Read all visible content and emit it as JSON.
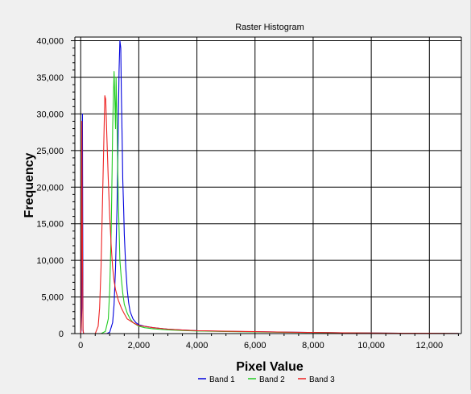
{
  "chart_data": {
    "type": "line",
    "title": "Raster Histogram",
    "xlabel": "Pixel Value",
    "ylabel": "Frequency",
    "xlim": [
      -200,
      13100
    ],
    "ylim": [
      0,
      40500
    ],
    "x_ticks": [
      0,
      2000,
      4000,
      6000,
      8000,
      10000,
      12000
    ],
    "x_tick_labels": [
      "0",
      "2,000",
      "4,000",
      "6,000",
      "8,000",
      "10,000",
      "12,000"
    ],
    "y_ticks": [
      0,
      5000,
      10000,
      15000,
      20000,
      25000,
      30000,
      35000,
      40000
    ],
    "y_tick_labels": [
      "0",
      "5,000",
      "10,000",
      "15,000",
      "20,000",
      "25,000",
      "30,000",
      "35,000",
      "40,000"
    ],
    "grid": true,
    "legend_position": "bottom",
    "series": [
      {
        "name": "Band 1",
        "color": "#0000dd",
        "x": [
          0,
          20,
          40,
          60,
          80,
          100,
          900,
          1000,
          1100,
          1150,
          1200,
          1250,
          1280,
          1300,
          1320,
          1350,
          1380,
          1400,
          1430,
          1450,
          1480,
          1500,
          1550,
          1600,
          1650,
          1700,
          1800,
          1900,
          2000,
          2200,
          2500,
          3000,
          3500,
          4000,
          5000,
          6000,
          7000,
          8000,
          9000,
          10000,
          11000,
          12000,
          13000
        ],
        "y": [
          0,
          500,
          3500,
          30000,
          500,
          0,
          0,
          200,
          1500,
          4000,
          9000,
          17000,
          24000,
          30000,
          36000,
          40000,
          39000,
          33000,
          26000,
          21000,
          17000,
          13500,
          9000,
          6000,
          4200,
          3000,
          2000,
          1500,
          1200,
          1000,
          800,
          600,
          500,
          400,
          300,
          250,
          200,
          150,
          100,
          80,
          60,
          40,
          20
        ]
      },
      {
        "name": "Band 2",
        "color": "#22cc22",
        "x": [
          700,
          850,
          950,
          1000,
          1050,
          1080,
          1100,
          1130,
          1150,
          1170,
          1200,
          1220,
          1250,
          1280,
          1300,
          1330,
          1350,
          1400,
          1450,
          1500,
          1600,
          1700,
          1800,
          2000,
          2200,
          2500,
          3000,
          3500,
          4000,
          5000,
          6000,
          7000,
          8000,
          9000,
          10000,
          11000,
          12000,
          13000
        ],
        "y": [
          0,
          300,
          2000,
          6000,
          14000,
          22000,
          28000,
          33000,
          35800,
          33000,
          28000,
          35000,
          29000,
          22000,
          17500,
          13000,
          10000,
          7500,
          5500,
          4000,
          2800,
          2000,
          1500,
          1000,
          800,
          650,
          500,
          420,
          350,
          280,
          220,
          180,
          140,
          100,
          70,
          50,
          30,
          15
        ]
      },
      {
        "name": "Band 3",
        "color": "#ee2222",
        "x": [
          0,
          20,
          40,
          60,
          80,
          100,
          500,
          600,
          650,
          700,
          750,
          800,
          830,
          860,
          900,
          950,
          1000,
          1050,
          1100,
          1150,
          1200,
          1300,
          1400,
          1500,
          1600,
          1800,
          2000,
          2500,
          3000,
          3500,
          4000,
          5000,
          6000,
          7000,
          8000,
          9000,
          10000,
          11000,
          12000,
          13000
        ],
        "y": [
          0,
          800,
          29000,
          12000,
          500,
          0,
          0,
          1000,
          3500,
          9000,
          18000,
          27000,
          32500,
          32000,
          27000,
          21000,
          16000,
          12000,
          9000,
          7200,
          6000,
          4500,
          3500,
          2700,
          2000,
          1500,
          1100,
          800,
          600,
          480,
          400,
          320,
          260,
          200,
          150,
          110,
          80,
          60,
          40,
          20
        ]
      }
    ]
  }
}
